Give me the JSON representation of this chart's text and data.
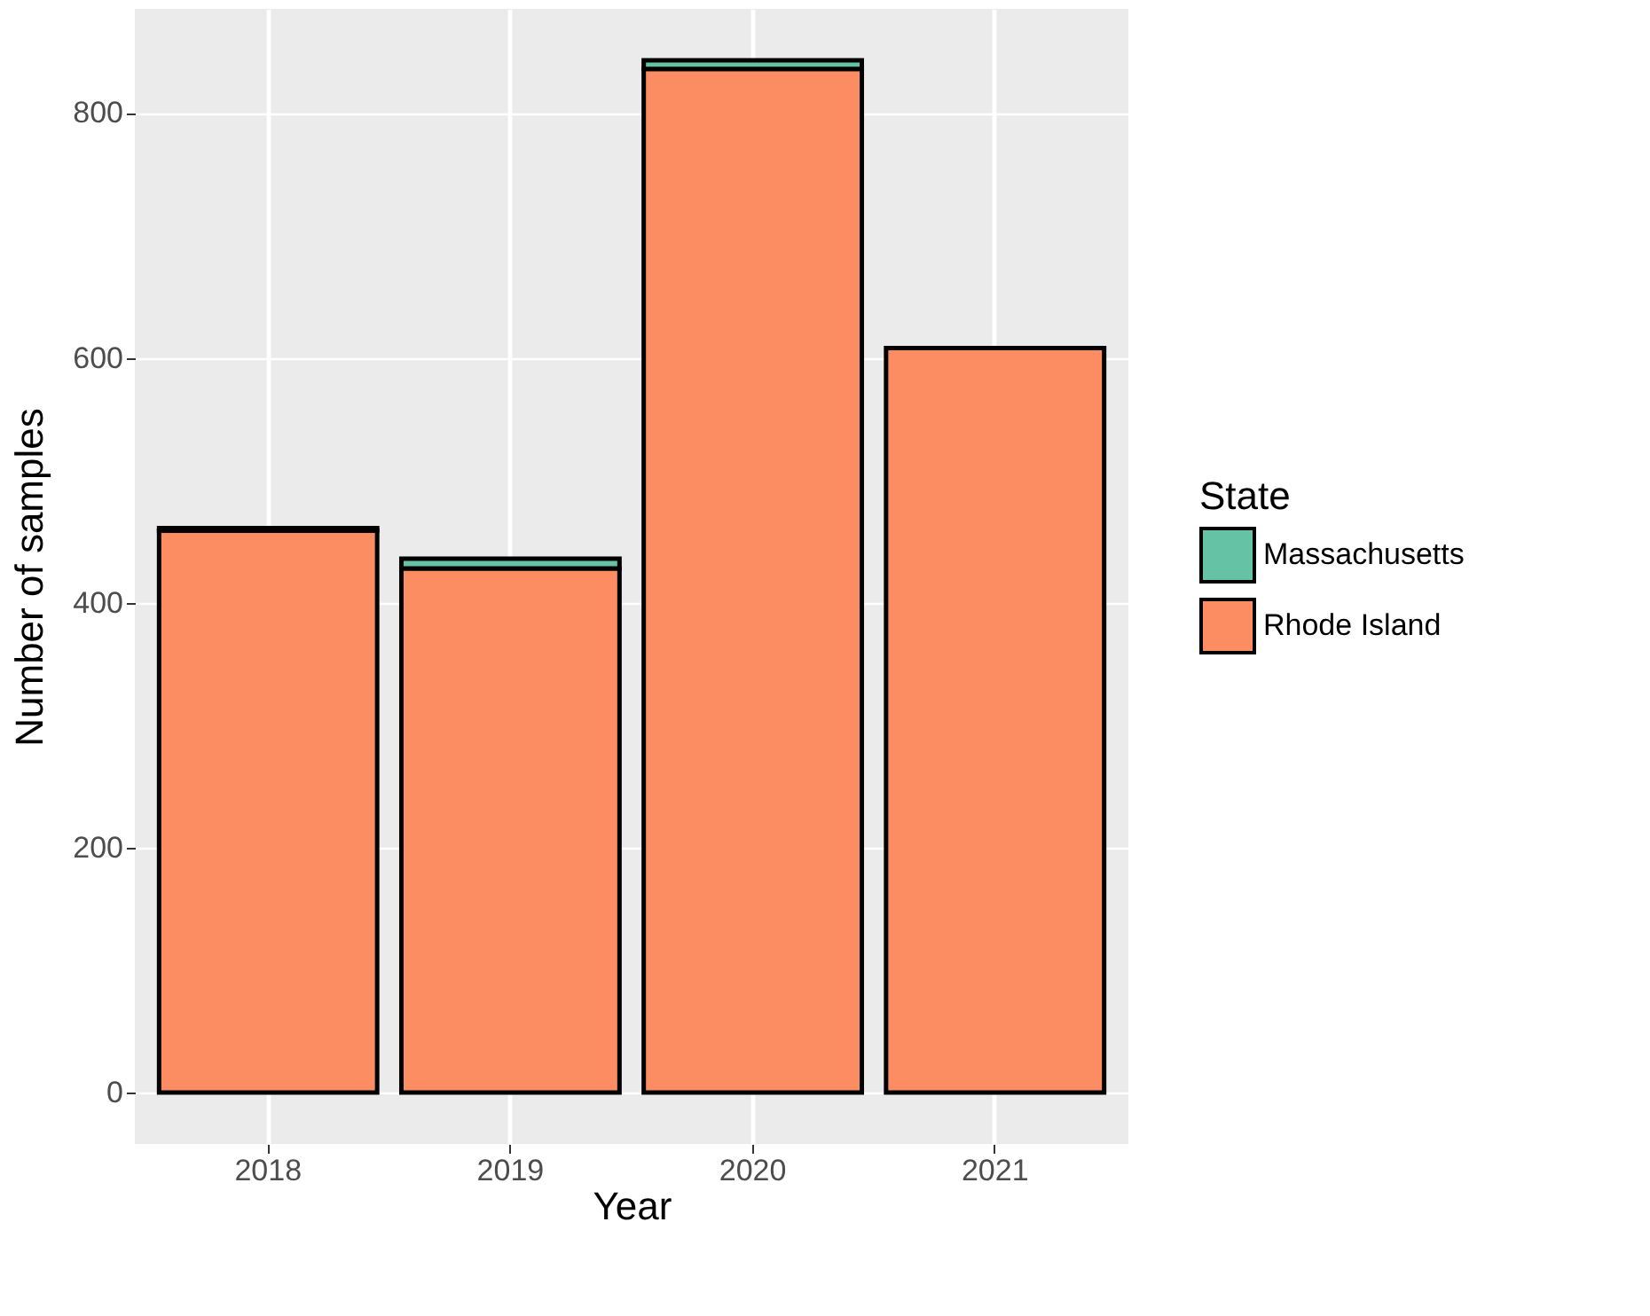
{
  "chart_data": {
    "type": "bar",
    "stacked": true,
    "xlabel": "Year",
    "ylabel": "Number of samples",
    "legend_title": "State",
    "legend": "right",
    "grid": true,
    "categories": [
      "2018",
      "2019",
      "2020",
      "2021"
    ],
    "series": [
      {
        "name": "Rhode Island",
        "color": "#fc8d62",
        "values": [
          459,
          428,
          836,
          608
        ]
      },
      {
        "name": "Massachusetts",
        "color": "#66c2a5",
        "values": [
          2,
          8,
          7,
          null
        ]
      }
    ],
    "ylim": [
      -42,
      885
    ],
    "yticks": [
      0,
      200,
      400,
      600,
      800
    ]
  }
}
